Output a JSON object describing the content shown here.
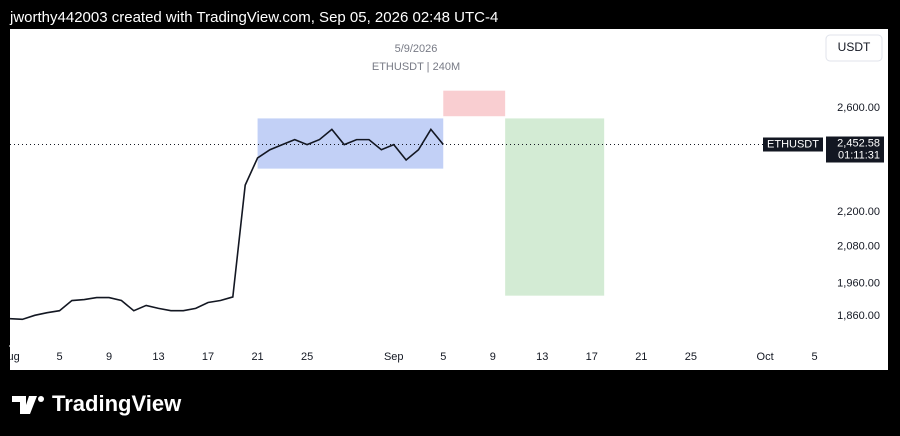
{
  "header": {
    "credit": "jworthy442003 created with TradingView.com, Sep 05, 2026 02:48 UTC-4"
  },
  "footer": {
    "brand": "TradingView"
  },
  "chart_data": {
    "type": "line",
    "title": "5/9/2026",
    "subtitle": "ETHUSDT | 240M",
    "currency": "USDT",
    "log_scale": true,
    "color": "#131722",
    "x": [
      "Aug 1",
      "Aug 2",
      "Aug 3",
      "Aug 4",
      "Aug 5",
      "Aug 6",
      "Aug 7",
      "Aug 8",
      "Aug 9",
      "Aug 10",
      "Aug 11",
      "Aug 12",
      "Aug 13",
      "Aug 14",
      "Aug 15",
      "Aug 16",
      "Aug 17",
      "Aug 18",
      "Aug 19",
      "Aug 20",
      "Aug 21",
      "Aug 22",
      "Aug 23",
      "Aug 24",
      "Aug 25",
      "Aug 26",
      "Aug 27",
      "Aug 28",
      "Aug 29",
      "Aug 30",
      "Aug 31",
      "Sep 1",
      "Sep 2",
      "Sep 3",
      "Sep 4",
      "Sep 5"
    ],
    "series": [
      {
        "name": "ETHUSDT",
        "color": "#131722",
        "values": [
          1852,
          1850,
          1862,
          1870,
          1876,
          1907,
          1910,
          1916,
          1916,
          1907,
          1876,
          1892,
          1883,
          1876,
          1876,
          1883,
          1901,
          1907,
          1918,
          2297,
          2400,
          2432,
          2452,
          2472,
          2452,
          2472,
          2513,
          2452,
          2472,
          2472,
          2432,
          2452,
          2392,
          2432,
          2513,
          2452.58
        ]
      }
    ],
    "zones": [
      {
        "x": [
          "Aug 21",
          "Sep 5"
        ],
        "y": [
          2359,
          2558
        ],
        "color": "#b7c8f5"
      },
      {
        "x": [
          "Sep 5",
          "Sep 10"
        ],
        "y": [
          2567,
          2675
        ],
        "color": "#f8c5c9"
      },
      {
        "x": [
          "Sep 10",
          "Sep 18"
        ],
        "y": [
          1922,
          2558
        ],
        "color": "#cbe8cc"
      }
    ],
    "last_price": {
      "value": 2452.58,
      "label": "2,452.58"
    },
    "countdown": "01:11:31",
    "xlim": [
      "Aug 1",
      "Oct 6"
    ],
    "xticks": [
      {
        "value": "Aug 1",
        "label": "Aug"
      },
      {
        "value": "Aug 5",
        "label": "5"
      },
      {
        "value": "Aug 9",
        "label": "9"
      },
      {
        "value": "Aug 13",
        "label": "13"
      },
      {
        "value": "Aug 17",
        "label": "17"
      },
      {
        "value": "Aug 21",
        "label": "21"
      },
      {
        "value": "Aug 25",
        "label": "25"
      },
      {
        "value": "Sep 1",
        "label": "Sep"
      },
      {
        "value": "Sep 5",
        "label": "5"
      },
      {
        "value": "Sep 9",
        "label": "9"
      },
      {
        "value": "Sep 13",
        "label": "13"
      },
      {
        "value": "Sep 17",
        "label": "17"
      },
      {
        "value": "Sep 21",
        "label": "21"
      },
      {
        "value": "Sep 25",
        "label": "25"
      },
      {
        "value": "Oct 1",
        "label": "Oct"
      },
      {
        "value": "Oct 5",
        "label": "5"
      }
    ],
    "ylim": [
      1775,
      2950
    ],
    "yticks": [
      {
        "value": 1860,
        "label": "1,860.00"
      },
      {
        "value": 1960,
        "label": "1,960.00"
      },
      {
        "value": 2080,
        "label": "2,080.00"
      },
      {
        "value": 2200,
        "label": "2,200.00"
      },
      {
        "value": 2600,
        "label": "2,600.00"
      }
    ]
  }
}
